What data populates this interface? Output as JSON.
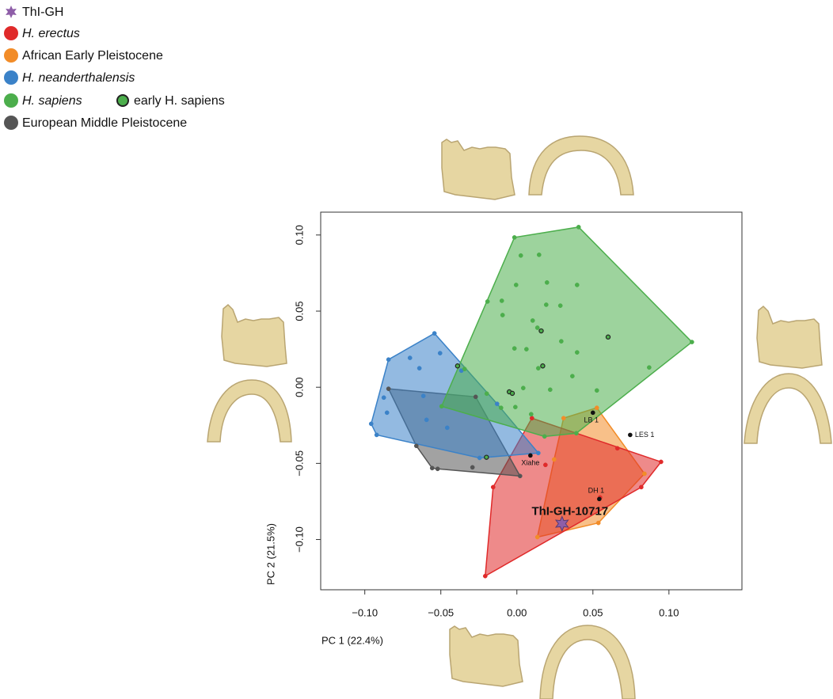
{
  "chart_data": {
    "type": "scatter",
    "xlabel": "PC 1 (22.4%)",
    "ylabel": "PC 2 (21.5%)",
    "xlim": [
      -0.129,
      0.148
    ],
    "ylim": [
      -0.133,
      0.115
    ],
    "xticks": [
      {
        "value": -0.1,
        "label": "−0.10"
      },
      {
        "value": -0.05,
        "label": "−0.05"
      },
      {
        "value": 0,
        "label": "0.00"
      },
      0.05,
      {
        "value": 0.1,
        "label": "0.10"
      }
    ],
    "yticks": [
      {
        "value": -0.1,
        "label": "−0.10"
      },
      {
        "value": -0.05,
        "label": "−0.05"
      },
      {
        "value": 0,
        "label": "0.00"
      },
      0.05,
      {
        "value": 0.1,
        "label": "0.10"
      }
    ],
    "series": [
      {
        "name": "ThI-GH",
        "color": "#8e5ea8",
        "marker": "star",
        "x": [
          0.0297
        ],
        "y": [
          -0.0896
        ],
        "point_labels": [
          "ThI-GH-10717"
        ]
      },
      {
        "name": "H. erectus",
        "color": "#e02a2a",
        "hull": true,
        "x": [
          0.0099,
          0.0948,
          0.0661,
          0.0818,
          -0.0208,
          -0.0156,
          0.0188,
          0.0547
        ],
        "y": [
          -0.0203,
          -0.049,
          -0.0401,
          -0.0656,
          -0.124,
          -0.0656,
          -0.051,
          -0.0724
        ]
      },
      {
        "name": "African Early Pleistocene",
        "color": "#f28c28",
        "hull": true,
        "x": [
          0.0307,
          0.0526,
          0.0839,
          0.0536,
          0.0135,
          0.0245
        ],
        "y": [
          -0.0203,
          -0.0135,
          -0.0568,
          -0.0891,
          -0.0984,
          -0.0474
        ]
      },
      {
        "name": "H. neanderthalensis",
        "color": "#3b82c8",
        "hull": true,
        "x": [
          -0.0542,
          -0.0505,
          -0.0703,
          -0.0641,
          -0.0844,
          -0.0875,
          -0.0854,
          -0.0958,
          -0.0922,
          -0.0615,
          -0.0594,
          -0.0458,
          -0.0245,
          0.0141,
          -0.013,
          -0.0365
        ],
        "y": [
          0.0354,
          0.0224,
          0.0193,
          0.0125,
          0.0182,
          -0.0068,
          -0.0167,
          -0.024,
          -0.0313,
          -0.0057,
          -0.0214,
          -0.0266,
          -0.0464,
          -0.0432,
          -0.0109,
          0.0109
        ]
      },
      {
        "name": "H. sapiens",
        "color": "#4cae4c",
        "hull": true,
        "x": [
          -0.0016,
          0.0406,
          0.1151,
          0.087,
          0.0026,
          0.0146,
          -0.0193,
          -0.0099,
          -0.0005,
          0.0198,
          0.0396,
          0.0193,
          0.0286,
          0.0104,
          -0.0094,
          0.0135,
          -0.0016,
          0.0063,
          0.0396,
          0.0292,
          0.0141,
          0.0365,
          0.0042,
          0.0219,
          0.0526,
          -0.0104,
          -0.001,
          0.0094,
          0.0182,
          -0.0495,
          -0.0344,
          -0.0198,
          0.0391
        ],
        "y": [
          0.0984,
          0.1052,
          0.0297,
          0.013,
          0.0865,
          0.087,
          0.0563,
          0.0568,
          0.0672,
          0.0688,
          0.0672,
          0.0542,
          0.0536,
          0.0438,
          0.0474,
          0.0391,
          0.0255,
          0.025,
          0.0229,
          0.0302,
          0.0125,
          0.0073,
          -0.0005,
          -0.0016,
          -0.0021,
          -0.0135,
          -0.013,
          -0.0177,
          -0.0323,
          -0.0125,
          0.012,
          -0.0042,
          -0.0302
        ]
      },
      {
        "name": "early H. sapiens",
        "color": "#4cae4c",
        "outline": "#222222",
        "x": [
          0.016,
          0.017,
          0.06,
          -0.005,
          -0.003,
          -0.039,
          -0.02
        ],
        "y": [
          0.037,
          0.014,
          0.033,
          -0.003,
          -0.004,
          0.014,
          -0.046
        ]
      },
      {
        "name": "European Middle Pleistocene",
        "color": "#555555",
        "hull": true,
        "x": [
          -0.0844,
          -0.0271,
          0.0021,
          -0.0521,
          -0.0557,
          -0.0661,
          -0.0292
        ],
        "y": [
          -0.001,
          -0.0063,
          -0.0583,
          -0.0536,
          -0.0531,
          -0.0385,
          -0.0526
        ]
      }
    ],
    "annotations": [
      {
        "text": "LB 1",
        "x": 0.05,
        "y": -0.0167
      },
      {
        "text": "LES 1",
        "x": 0.0745,
        "y": -0.0313
      },
      {
        "text": "DH 1",
        "x": 0.0542,
        "y": -0.0734
      },
      {
        "text": "Xiahe",
        "x": 0.0089,
        "y": -0.0448
      }
    ]
  }
}
